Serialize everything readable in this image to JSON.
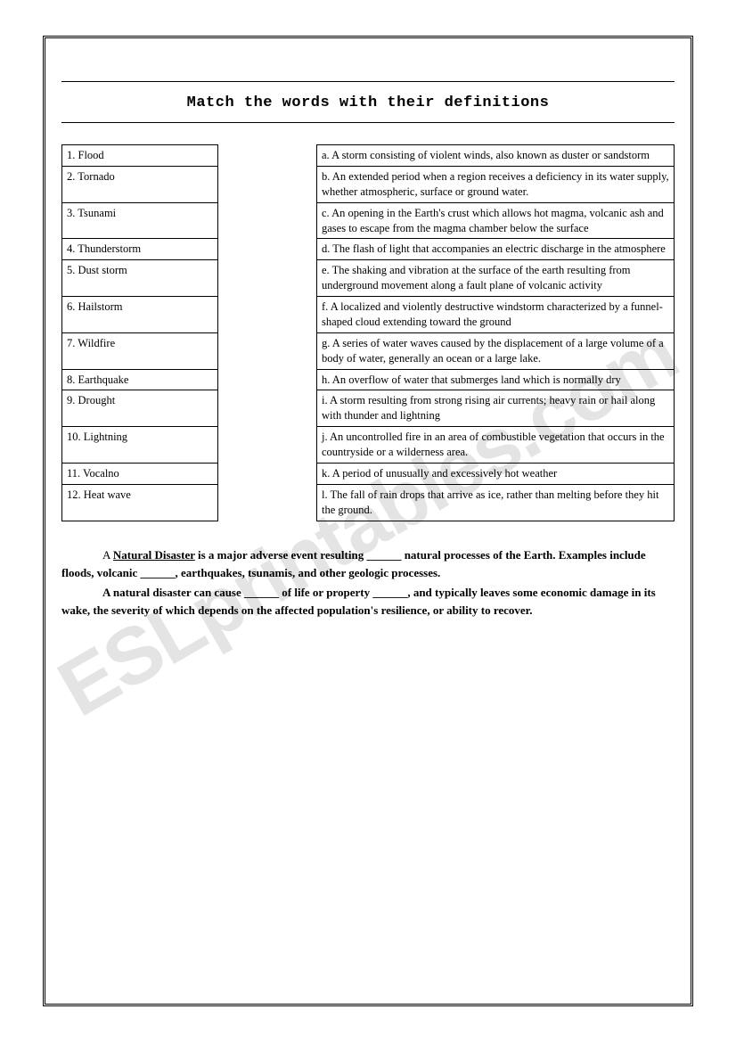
{
  "watermark": "ESLprintables.com",
  "title": "Match the words with their definitions",
  "words": [
    "1. Flood",
    "2. Tornado",
    "3. Tsunami",
    "4. Thunderstorm",
    "5. Dust storm",
    "6. Hailstorm",
    "7. Wildfire",
    "8. Earthquake",
    "9. Drought",
    "10. Lightning",
    "11. Vocalno",
    "12. Heat wave"
  ],
  "defs": [
    "a. A storm consisting of violent winds, also known as duster or sandstorm",
    "b. An extended period when a region receives a deficiency in its water supply, whether atmospheric, surface or ground water.",
    "c. An opening in the Earth's crust which allows hot magma, volcanic ash and gases to escape from the magma chamber below the surface",
    "d. The flash of light that accompanies an electric discharge in the atmosphere",
    "e. The shaking and vibration at the surface of the earth resulting from underground movement along a fault plane of volcanic activity",
    "f. A localized and violently destructive windstorm characterized by a funnel-shaped cloud extending toward the ground",
    "g. A series of water waves caused by the displacement of a large volume of a body of water, generally an ocean or a large lake.",
    "h. An overflow of water that submerges land which is normally dry",
    "i. A storm resulting from strong rising air currents; heavy rain or hail along with thunder and lightning",
    "j. An uncontrolled fire in an area of combustible vegetation that occurs in the countryside or a wilderness area.",
    "k. A period of unusually and excessively hot weather",
    "l. The fall of rain drops that arrive as ice, rather than melting before they hit the ground."
  ],
  "para": {
    "term": "Natural Disaster",
    "t1a": "A ",
    "t1b": " is a major adverse event resulting ______ natural processes of the Earth. Examples include floods, volcanic ______, earthquakes, tsunamis, and other geologic processes.",
    "t2": "A natural disaster can cause ______ of life or property ______, and typically leaves some economic damage in its wake, the severity of which depends on the affected population's resilience, or ability to recover."
  },
  "row_heights_words": [
    "32px",
    "50px",
    "50px",
    "34px",
    "50px",
    "50px",
    "50px",
    "34px",
    "32px",
    "18px",
    "32px",
    "34px"
  ]
}
